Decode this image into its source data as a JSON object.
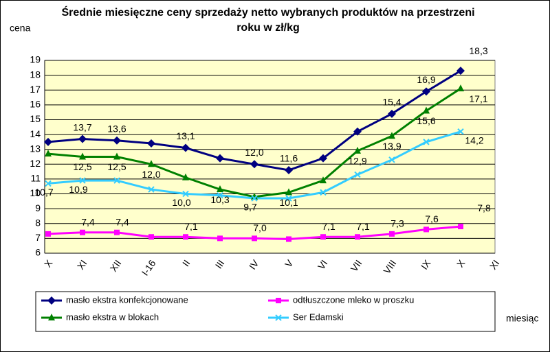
{
  "chart_data": {
    "type": "line",
    "title": "Średnie miesięczne ceny sprzedaży netto  wybranych produktów na przestrzeni roku w zł/kg",
    "y_label": "cena",
    "x_label": "miesiąc",
    "categories": [
      "X",
      "XI",
      "XII",
      "I-16",
      "II",
      "III",
      "IV",
      "V",
      "VI",
      "VII",
      "VIII",
      "IX",
      "X",
      "XI"
    ],
    "ylim": [
      6,
      19
    ],
    "yticks": [
      6,
      7,
      8,
      9,
      10,
      11,
      12,
      13,
      14,
      15,
      16,
      17,
      18,
      19
    ],
    "grid": true,
    "series": [
      {
        "name": "masło ekstra konfekcjonowane",
        "color": "#000080",
        "marker": "diamond",
        "values": [
          13.5,
          13.7,
          13.6,
          13.4,
          13.1,
          12.4,
          12.0,
          11.6,
          12.4,
          14.2,
          15.4,
          16.9,
          18.3,
          null
        ],
        "value_labels": [
          null,
          "13,7",
          "13,6",
          null,
          "13,1",
          null,
          "12,0",
          "11,6",
          null,
          null,
          "15,4",
          "16,9",
          "18,3",
          null
        ]
      },
      {
        "name": "odtłuszczone mleko w proszku",
        "color": "#ff00ff",
        "marker": "square",
        "values": [
          7.3,
          7.4,
          7.4,
          7.1,
          7.1,
          7.0,
          7.0,
          6.95,
          7.1,
          7.1,
          7.3,
          7.6,
          7.8,
          null
        ],
        "value_labels": [
          null,
          "7,4",
          "7,4",
          null,
          "7,1",
          null,
          "7,0",
          null,
          "7,1",
          "7,1",
          "7,3",
          "7,6",
          "7,8",
          null
        ]
      },
      {
        "name": "masło ekstra w blokach",
        "color": "#008000",
        "marker": "triangle",
        "values": [
          12.7,
          12.5,
          12.5,
          12.0,
          11.1,
          10.3,
          9.8,
          10.1,
          10.9,
          12.9,
          13.9,
          15.6,
          17.1,
          null
        ],
        "value_labels": [
          null,
          "12,5",
          "12,5",
          "12,0",
          null,
          "10,3",
          null,
          "10,1",
          null,
          "12,9",
          "13,9",
          "15,6",
          "17,1",
          null
        ]
      },
      {
        "name": "Ser Edamski",
        "color": "#33ccff",
        "marker": "x",
        "values": [
          10.7,
          10.9,
          10.9,
          10.3,
          10.0,
          9.9,
          9.7,
          9.7,
          10.1,
          11.3,
          12.3,
          13.5,
          14.2,
          null
        ],
        "value_labels": [
          "10,7",
          "10,9",
          null,
          null,
          "10,0",
          null,
          "9,7",
          null,
          null,
          null,
          null,
          null,
          "14,2",
          null
        ]
      }
    ]
  }
}
